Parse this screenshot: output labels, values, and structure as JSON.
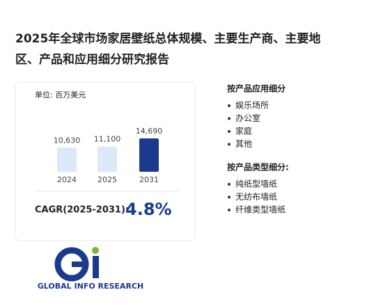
{
  "title": "2025年全球市场家居壁纸总体规模、主要生产商、主要地区、产品和应用细分研究报告",
  "chart_data": {
    "type": "bar",
    "unit_label": "单位: 百万美元",
    "categories": [
      "2024",
      "2025",
      "2031"
    ],
    "values": [
      10630,
      11100,
      14690
    ],
    "value_labels": [
      "10,630",
      "11,100",
      "14,690"
    ],
    "colors": [
      "#dbe9fb",
      "#dbe9fb",
      "#1b3a8c"
    ]
  },
  "cagr": {
    "label": "CAGR(2025-2031):",
    "value": "4.8%"
  },
  "sections": [
    {
      "heading": "按产品应用细分",
      "items": [
        "娱乐场所",
        "办公室",
        "家庭",
        "其他"
      ]
    },
    {
      "heading": "按产品类型细分:",
      "items": [
        "纯纸型墙纸",
        "无纺布墙纸",
        "纤维类型墙纸"
      ]
    }
  ],
  "logo": {
    "text": "GLOBAL INFO RESEARCH"
  }
}
